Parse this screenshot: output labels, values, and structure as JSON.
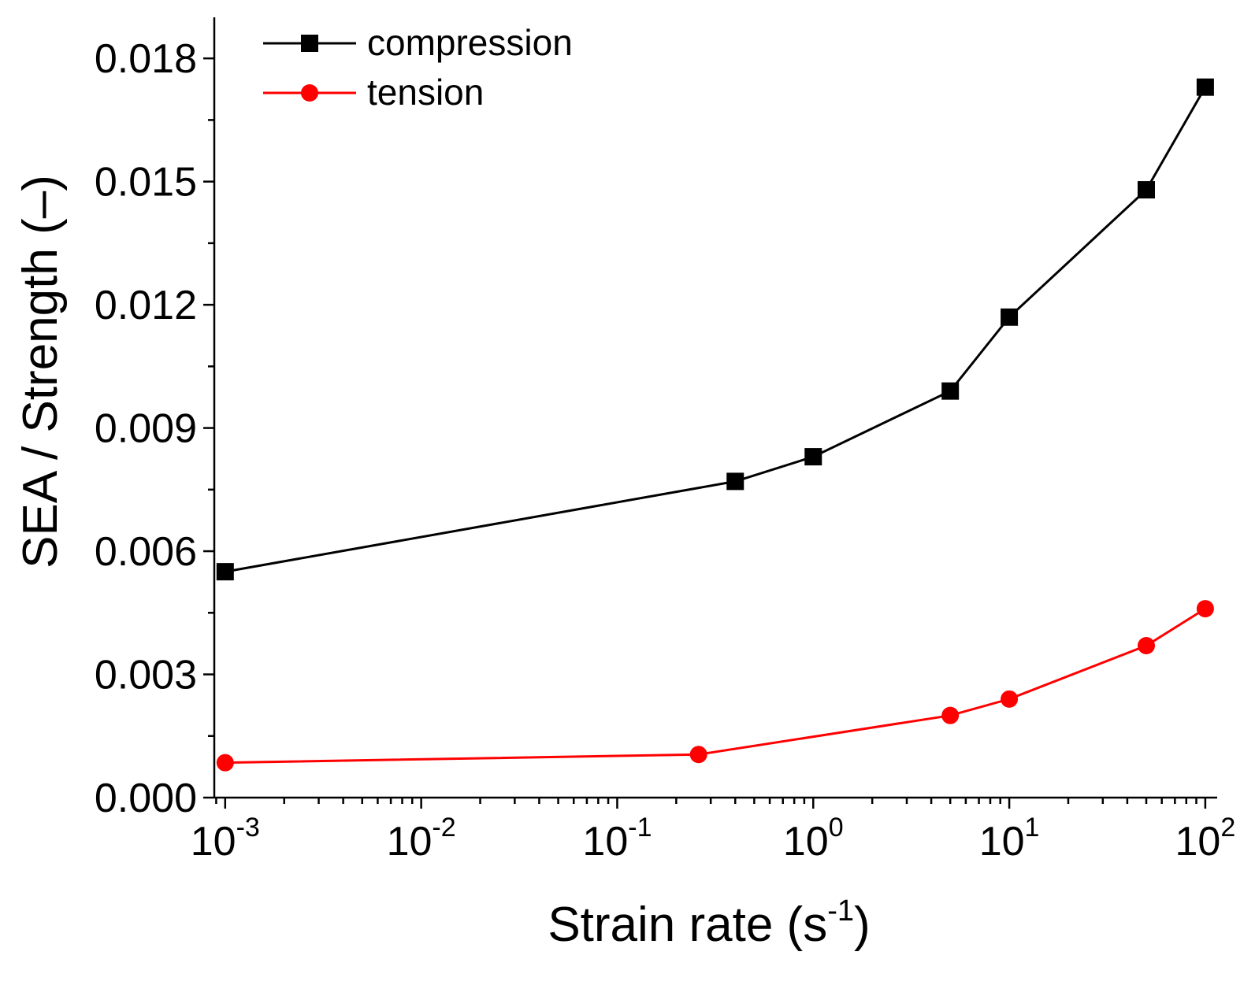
{
  "chart_data": {
    "type": "line",
    "xscale": "log",
    "xlabel": "Strain rate (s",
    "xlabel_sup": "-1",
    "xlabel_tail": ")",
    "ylabel": "SEA / Strength (–)",
    "xlim": [
      0.00088,
      115
    ],
    "ylim": [
      0,
      0.019
    ],
    "yticks": [
      {
        "value": 0,
        "label": "0.000"
      },
      {
        "value": 0.003,
        "label": "0.003"
      },
      {
        "value": 0.006,
        "label": "0.006"
      },
      {
        "value": 0.009,
        "label": "0.009"
      },
      {
        "value": 0.012,
        "label": "0.012"
      },
      {
        "value": 0.015,
        "label": "0.015"
      },
      {
        "value": 0.018,
        "label": "0.018"
      }
    ],
    "xticks": [
      {
        "value": 0.001,
        "base": "10",
        "exp": "-3"
      },
      {
        "value": 0.01,
        "base": "10",
        "exp": "-2"
      },
      {
        "value": 0.1,
        "base": "10",
        "exp": "-1"
      },
      {
        "value": 1,
        "base": "10",
        "exp": "0"
      },
      {
        "value": 10,
        "base": "10",
        "exp": "1"
      },
      {
        "value": 100,
        "base": "10",
        "exp": "2"
      }
    ],
    "legend_position": "top-left",
    "series": [
      {
        "name": "compression",
        "color": "#000000",
        "marker": "square",
        "x": [
          0.001,
          0.4,
          1,
          5,
          10,
          50,
          100
        ],
        "y": [
          0.0055,
          0.0077,
          0.0083,
          0.0099,
          0.0117,
          0.0148,
          0.0173
        ]
      },
      {
        "name": "tension",
        "color": "#ff0000",
        "marker": "circle",
        "x": [
          0.001,
          0.26,
          5,
          10,
          50,
          100
        ],
        "y": [
          0.00085,
          0.00105,
          0.002,
          0.0024,
          0.0037,
          0.0046
        ]
      }
    ]
  }
}
